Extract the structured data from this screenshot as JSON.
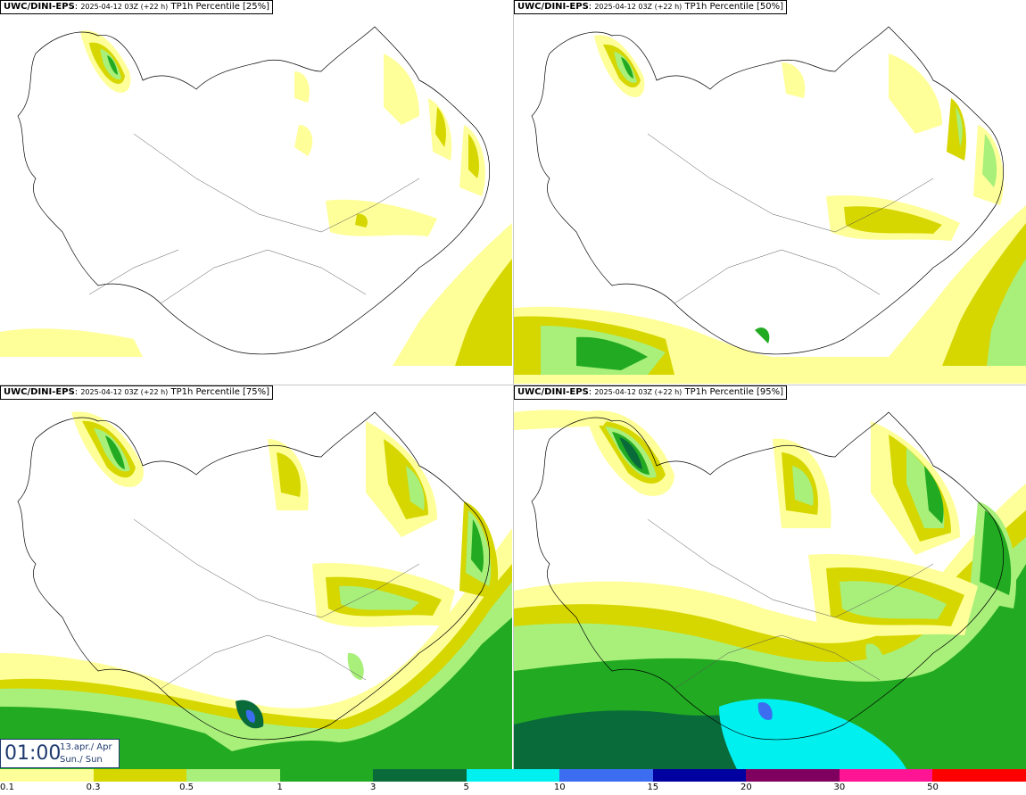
{
  "panels": [
    {
      "model": "UWC/DINI-EPS",
      "run": "2025-04-12 03Z (+22 h)",
      "field": "TP1h Percentile [25%]"
    },
    {
      "model": "UWC/DINI-EPS",
      "run": "2025-04-12 03Z (+22 h)",
      "field": "TP1h Percentile [50%]"
    },
    {
      "model": "UWC/DINI-EPS",
      "run": "2025-04-12 03Z (+22 h)",
      "field": "TP1h Percentile [75%]"
    },
    {
      "model": "UWC/DINI-EPS",
      "run": "2025-04-12 03Z (+22 h)",
      "field": "TP1h Percentile [95%]"
    }
  ],
  "time": {
    "clock": "01:00",
    "date_line": "13.apr./ Apr",
    "day_line": "Sun./ Sun"
  },
  "legend": {
    "labels": [
      "0.1",
      "0.3",
      "0.5",
      "1",
      "3",
      "5",
      "10",
      "15",
      "20",
      "30",
      "50"
    ],
    "colors": [
      "#ffff99",
      "#d6d600",
      "#a8f07a",
      "#22aa22",
      "#0a6b3a",
      "#00f0f0",
      "#3c6cf0",
      "#0000a0",
      "#800060",
      "#ff1493",
      "#ff0000"
    ]
  },
  "colors": {
    "c1": "#ffff99",
    "c2": "#d6d600",
    "c3": "#a8f07a",
    "c4": "#22aa22",
    "c5": "#0a6b3a",
    "c6": "#00f0f0",
    "c7": "#3c6cf0"
  }
}
